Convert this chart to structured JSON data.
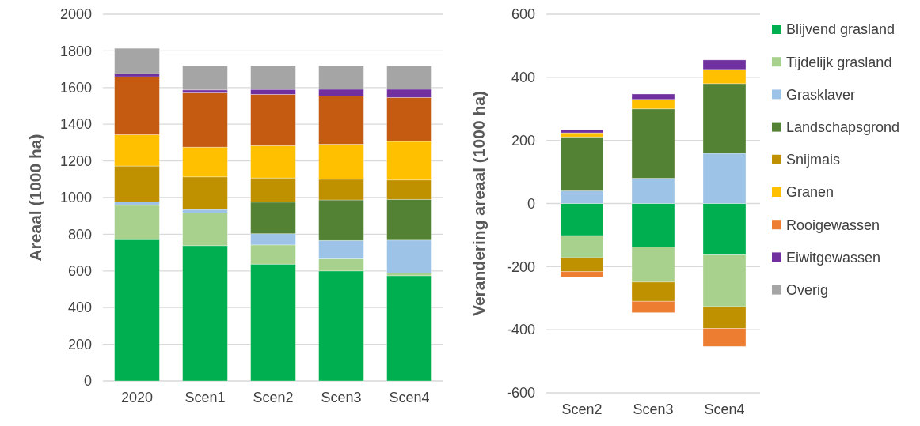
{
  "chart_data": [
    {
      "type": "bar",
      "stacked": true,
      "ylabel": "Areaal (1000 ha)",
      "categories": [
        "2020",
        "Scen1",
        "Scen2",
        "Scen3",
        "Scen4"
      ],
      "ylim": [
        0,
        2000
      ],
      "yticks": [
        0,
        200,
        400,
        600,
        800,
        1000,
        1200,
        1400,
        1600,
        1800,
        2000
      ],
      "grid": "y",
      "legend": false,
      "series": [
        {
          "color": "#00b050",
          "values": [
            771,
            738,
            637,
            600,
            574
          ]
        },
        {
          "color": "#a9d18e",
          "values": [
            187,
            178,
            105,
            66,
            15
          ]
        },
        {
          "color": "#9dc3e6",
          "values": [
            19,
            19,
            61,
            100,
            179
          ]
        },
        {
          "color": "#548235",
          "values": [
            0,
            0,
            172,
            221,
            222
          ]
        },
        {
          "color": "#bf9000",
          "values": [
            195,
            178,
            132,
            113,
            106
          ]
        },
        {
          "color": "#ffc000",
          "values": [
            171,
            162,
            176,
            191,
            210
          ]
        },
        {
          "color": "#c55a11",
          "values": [
            316,
            296,
            280,
            263,
            240
          ]
        },
        {
          "color": "#7030a0",
          "values": [
            17,
            16,
            27,
            37,
            45
          ]
        },
        {
          "color": "#a5a5a5",
          "values": [
            138,
            132,
            129,
            128,
            128
          ]
        }
      ]
    },
    {
      "type": "bar",
      "stacked": true,
      "ylabel": "Verandering areaal (1000 ha)",
      "categories": [
        "Scen2",
        "Scen3",
        "Scen4"
      ],
      "ylim": [
        -600,
        600
      ],
      "yticks": [
        -600,
        -400,
        -200,
        0,
        200,
        400,
        600
      ],
      "grid": "y",
      "legend": "right",
      "series": [
        {
          "name": "Blijvend grasland",
          "color": "#00b050",
          "values": [
            -102,
            -138,
            -163
          ]
        },
        {
          "name": "Tijdelijk grasland",
          "color": "#a9d18e",
          "values": [
            -70,
            -111,
            -164
          ]
        },
        {
          "name": "Grasklaver",
          "color": "#9dc3e6",
          "values": [
            40,
            80,
            159
          ]
        },
        {
          "name": "Landschapsgrond",
          "color": "#548235",
          "values": [
            171,
            220,
            221
          ]
        },
        {
          "name": "Snijmais",
          "color": "#bf9000",
          "values": [
            -44,
            -61,
            -69
          ]
        },
        {
          "name": "Granen",
          "color": "#ffc000",
          "values": [
            13,
            30,
            45
          ]
        },
        {
          "name": "Rooigewassen",
          "color": "#ed7d31",
          "values": [
            -17,
            -36,
            -57
          ]
        },
        {
          "name": "Eiwitgewassen",
          "color": "#7030a0",
          "values": [
            10,
            17,
            30
          ]
        },
        {
          "name": "Overig",
          "color": "#a5a5a5",
          "values": [
            0,
            0,
            0
          ]
        }
      ]
    }
  ]
}
